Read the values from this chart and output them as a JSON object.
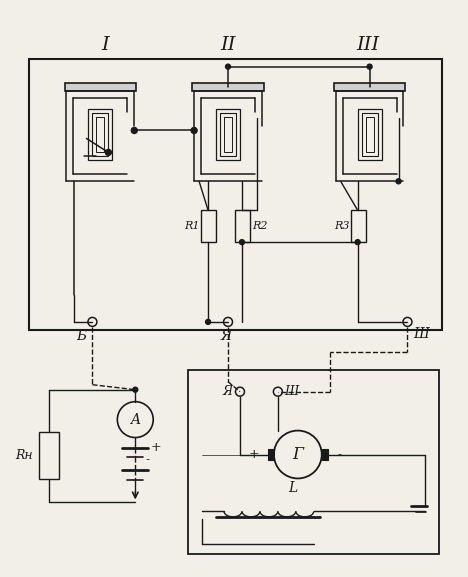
{
  "bg": "#f2efe9",
  "lc": "#1a1a1a",
  "I": "I",
  "II": "II",
  "III": "III",
  "B": "Б",
  "Ya": "Я",
  "Sh": "Ш",
  "R1": "R1",
  "R2": "R2",
  "R3": "R3",
  "A": "A",
  "G": "Г",
  "L": "L",
  "Rn": "Rн"
}
